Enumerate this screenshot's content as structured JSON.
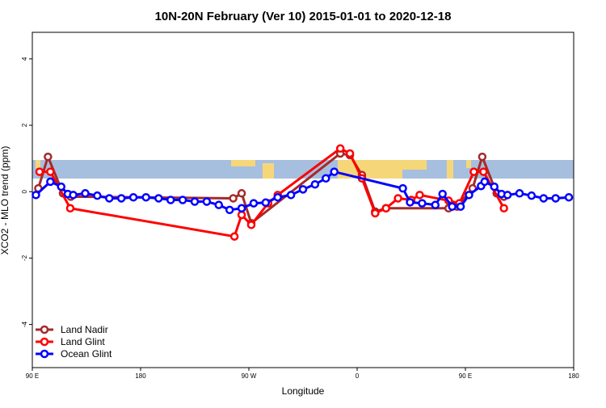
{
  "chart_data": {
    "type": "line",
    "title": "10N-20N February (Ver 10)   2015-01-01 to 2020-12-18",
    "x_label": "Longitude",
    "y_label": "XCO2 - MLO trend (ppm)",
    "xlim": [
      90,
      540
    ],
    "ylim": [
      -5.3,
      4.8
    ],
    "xticks": [
      {
        "value": 90,
        "label": "90 E"
      },
      {
        "value": 180,
        "label": "180"
      },
      {
        "value": 270,
        "label": "90 W"
      },
      {
        "value": 360,
        "label": "0"
      },
      {
        "value": 450,
        "label": "90 E"
      },
      {
        "value": 540,
        "label": "180"
      }
    ],
    "yticks": [
      -4,
      -2,
      0,
      2,
      4
    ],
    "legend": "bottom-left",
    "series": [
      {
        "name": "Land Nadir",
        "color": "#a52a2a",
        "x": [
          95,
          103,
          115.5,
          122,
          257,
          264,
          272,
          346,
          354,
          364,
          375,
          384,
          436,
          443,
          456,
          464,
          476,
          482
        ],
        "values": [
          0.1,
          1.05,
          -0.05,
          -0.15,
          -0.2,
          -0.05,
          -0.95,
          1.15,
          1.1,
          0.5,
          -0.6,
          -0.5,
          -0.5,
          -0.45,
          0.1,
          1.05,
          -0.05,
          -0.15
        ]
      },
      {
        "name": "Land Glint",
        "color": "#ff0000",
        "x": [
          96,
          105,
          121.5,
          258,
          264,
          272,
          286,
          294,
          346,
          354,
          364,
          375,
          384,
          394,
          405,
          412,
          436,
          445,
          457,
          465,
          482
        ],
        "values": [
          0.6,
          0.6,
          -0.5,
          -1.35,
          -0.7,
          -1.0,
          -0.35,
          -0.1,
          1.3,
          1.15,
          0.4,
          -0.65,
          -0.5,
          -0.2,
          -0.25,
          -0.1,
          -0.27,
          -0.35,
          0.6,
          0.6,
          -0.5
        ]
      },
      {
        "name": "Ocean Glint",
        "color": "#0000ff",
        "x": [
          93,
          105,
          114,
          119.5,
          124,
          134,
          144,
          154,
          164,
          174,
          184.5,
          195,
          205,
          215,
          225,
          235,
          245,
          254,
          264,
          274,
          284,
          294,
          305,
          315,
          325,
          334,
          341,
          398,
          404,
          414,
          425,
          431,
          439,
          446,
          453,
          463,
          466,
          474,
          480,
          485,
          495,
          505,
          515,
          525,
          536
        ],
        "values": [
          -0.1,
          0.3,
          0.15,
          -0.07,
          -0.1,
          -0.05,
          -0.12,
          -0.2,
          -0.2,
          -0.17,
          -0.17,
          -0.2,
          -0.25,
          -0.25,
          -0.3,
          -0.3,
          -0.4,
          -0.55,
          -0.5,
          -0.35,
          -0.33,
          -0.17,
          -0.1,
          0.07,
          0.22,
          0.4,
          0.6,
          0.1,
          -0.32,
          -0.35,
          -0.4,
          -0.07,
          -0.45,
          -0.45,
          -0.1,
          0.17,
          0.3,
          0.15,
          -0.07,
          -0.1,
          -0.05,
          -0.12,
          -0.2,
          -0.2,
          -0.17
        ]
      }
    ]
  }
}
